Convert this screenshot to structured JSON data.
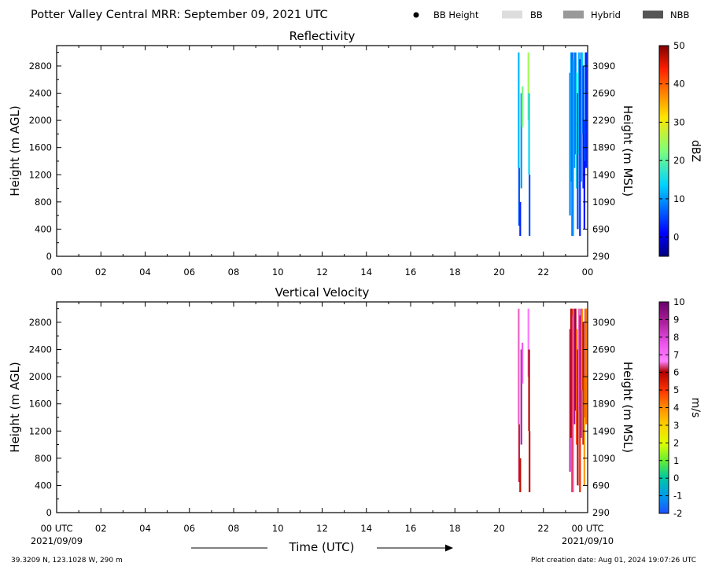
{
  "header": {
    "title": "Potter Valley Central MRR:  September 09, 2021 UTC",
    "legend": [
      {
        "label": "BB Height",
        "kind": "dot",
        "color": "#000000"
      },
      {
        "label": "BB",
        "kind": "swatch",
        "color": "#dddddd"
      },
      {
        "label": "Hybrid",
        "kind": "swatch",
        "color": "#999999"
      },
      {
        "label": "NBB",
        "kind": "swatch",
        "color": "#555555"
      }
    ]
  },
  "x_axis": {
    "label": "Time (UTC)",
    "range_hours": [
      0,
      24
    ],
    "ticks": [
      {
        "hour": 0,
        "label": "00"
      },
      {
        "hour": 2,
        "label": "02"
      },
      {
        "hour": 4,
        "label": "04"
      },
      {
        "hour": 6,
        "label": "06"
      },
      {
        "hour": 8,
        "label": "08"
      },
      {
        "hour": 10,
        "label": "10"
      },
      {
        "hour": 12,
        "label": "12"
      },
      {
        "hour": 14,
        "label": "14"
      },
      {
        "hour": 16,
        "label": "16"
      },
      {
        "hour": 18,
        "label": "18"
      },
      {
        "hour": 20,
        "label": "20"
      },
      {
        "hour": 22,
        "label": "22"
      },
      {
        "hour": 24,
        "label": "00"
      }
    ],
    "bottom_tick_labels": [
      "00 UTC",
      "02",
      "04",
      "06",
      "08",
      "10",
      "12",
      "14",
      "16",
      "18",
      "20",
      "22",
      "00 UTC"
    ],
    "start_date": "2021/09/09",
    "end_date": "2021/09/10"
  },
  "footer": {
    "location": "39.3209 N, 123.1028 W, 290 m",
    "creation": "Plot creation date: Aug 01, 2024 19:07:26 UTC"
  },
  "chart_data": [
    {
      "type": "heatmap",
      "title": "Reflectivity",
      "ylabel": "Height (m AGL)",
      "ylabel_right": "Height (m MSL)",
      "ylim": [
        0,
        3100
      ],
      "yticks": [
        0,
        400,
        800,
        1200,
        1600,
        2000,
        2400,
        2800
      ],
      "yticks_right": [
        "290",
        "690",
        "1090",
        "1490",
        "1890",
        "2290",
        "2690",
        "3090"
      ],
      "colorbar": {
        "label": "dBZ",
        "range": [
          -5,
          50
        ],
        "ticks": [
          0,
          10,
          20,
          30,
          40,
          50
        ],
        "colormap": "jet"
      },
      "segments": [
        {
          "t": 20.88,
          "y0": 1300,
          "y1": 3000,
          "v": 12
        },
        {
          "t": 20.9,
          "y0": 450,
          "y1": 1300,
          "v": 6
        },
        {
          "t": 20.95,
          "y0": 300,
          "y1": 800,
          "v": 3
        },
        {
          "t": 21.0,
          "y0": 1000,
          "y1": 2400,
          "v": 10
        },
        {
          "t": 21.05,
          "y0": 1900,
          "y1": 2500,
          "v": 22
        },
        {
          "t": 21.32,
          "y0": 2000,
          "y1": 3000,
          "v": 25
        },
        {
          "t": 21.35,
          "y0": 1200,
          "y1": 2400,
          "v": 14
        },
        {
          "t": 21.37,
          "y0": 300,
          "y1": 1200,
          "v": 6
        },
        {
          "t": 23.2,
          "y0": 600,
          "y1": 2700,
          "v": 9
        },
        {
          "t": 23.25,
          "y0": 1100,
          "y1": 3000,
          "v": 11
        },
        {
          "t": 23.3,
          "y0": 300,
          "y1": 3000,
          "v": 6
        },
        {
          "t": 23.35,
          "y0": 300,
          "y1": 2900,
          "v": 13
        },
        {
          "t": 23.4,
          "y0": 1300,
          "y1": 3000,
          "v": 10
        },
        {
          "t": 23.45,
          "y0": 1500,
          "y1": 3000,
          "v": 8
        },
        {
          "t": 23.5,
          "y0": 1000,
          "y1": 2700,
          "v": 16
        },
        {
          "t": 23.55,
          "y0": 400,
          "y1": 2400,
          "v": 5
        },
        {
          "t": 23.6,
          "y0": 1500,
          "y1": 3000,
          "v": 12
        },
        {
          "t": 23.65,
          "y0": 300,
          "y1": 2900,
          "v": 3
        },
        {
          "t": 23.7,
          "y0": 1100,
          "y1": 3000,
          "v": 8
        },
        {
          "t": 23.75,
          "y0": 1800,
          "y1": 3000,
          "v": 14
        },
        {
          "t": 23.8,
          "y0": 1000,
          "y1": 2800,
          "v": 4
        },
        {
          "t": 23.85,
          "y0": 400,
          "y1": 2000,
          "v": 2
        },
        {
          "t": 23.9,
          "y0": 1400,
          "y1": 3000,
          "v": 9
        },
        {
          "t": 23.95,
          "y0": 1300,
          "y1": 3000,
          "v": 3
        }
      ]
    },
    {
      "type": "heatmap",
      "title": "Vertical Velocity",
      "ylabel": "Height (m AGL)",
      "ylabel_right": "Height (m MSL)",
      "ylim": [
        0,
        3100
      ],
      "yticks": [
        0,
        400,
        800,
        1200,
        1600,
        2000,
        2400,
        2800
      ],
      "yticks_right": [
        "290",
        "690",
        "1090",
        "1490",
        "1890",
        "2290",
        "2690",
        "3090"
      ],
      "colorbar": {
        "label": "m/s",
        "range": [
          -2,
          10
        ],
        "ticks": [
          -2,
          -1,
          0,
          1,
          2,
          3,
          4,
          5,
          6,
          7,
          8,
          9,
          10
        ],
        "colormap": "nws_velocity"
      },
      "segments": [
        {
          "t": 20.88,
          "y0": 1300,
          "y1": 3000,
          "v": 6.5
        },
        {
          "t": 20.9,
          "y0": 450,
          "y1": 1300,
          "v": 6.2
        },
        {
          "t": 20.95,
          "y0": 300,
          "y1": 800,
          "v": 5.8
        },
        {
          "t": 21.0,
          "y0": 1000,
          "y1": 2400,
          "v": 8.8
        },
        {
          "t": 21.05,
          "y0": 1900,
          "y1": 2500,
          "v": 7.5
        },
        {
          "t": 21.32,
          "y0": 2000,
          "y1": 3000,
          "v": 6.8
        },
        {
          "t": 21.35,
          "y0": 1200,
          "y1": 2400,
          "v": 6.0
        },
        {
          "t": 21.37,
          "y0": 300,
          "y1": 1200,
          "v": 5.8
        },
        {
          "t": 23.2,
          "y0": 600,
          "y1": 2700,
          "v": 8.5
        },
        {
          "t": 23.25,
          "y0": 1100,
          "y1": 3000,
          "v": 6.0
        },
        {
          "t": 23.3,
          "y0": 300,
          "y1": 3000,
          "v": 5.5
        },
        {
          "t": 23.35,
          "y0": 300,
          "y1": 2900,
          "v": 7.0
        },
        {
          "t": 23.4,
          "y0": 1300,
          "y1": 3000,
          "v": 9.0
        },
        {
          "t": 23.45,
          "y0": 1500,
          "y1": 3000,
          "v": 6.0
        },
        {
          "t": 23.5,
          "y0": 1000,
          "y1": 2700,
          "v": 4.5
        },
        {
          "t": 23.55,
          "y0": 400,
          "y1": 2400,
          "v": 5.8
        },
        {
          "t": 23.6,
          "y0": 1500,
          "y1": 3000,
          "v": 6.5
        },
        {
          "t": 23.65,
          "y0": 300,
          "y1": 2900,
          "v": 5.2
        },
        {
          "t": 23.7,
          "y0": 1100,
          "y1": 3000,
          "v": 8.8
        },
        {
          "t": 23.75,
          "y0": 1800,
          "y1": 3000,
          "v": 4.0
        },
        {
          "t": 23.8,
          "y0": 1000,
          "y1": 2800,
          "v": 6.0
        },
        {
          "t": 23.85,
          "y0": 400,
          "y1": 2000,
          "v": 3.8
        },
        {
          "t": 23.9,
          "y0": 1400,
          "y1": 3000,
          "v": 5.5
        },
        {
          "t": 23.95,
          "y0": 1300,
          "y1": 3000,
          "v": 4.2
        }
      ]
    }
  ]
}
